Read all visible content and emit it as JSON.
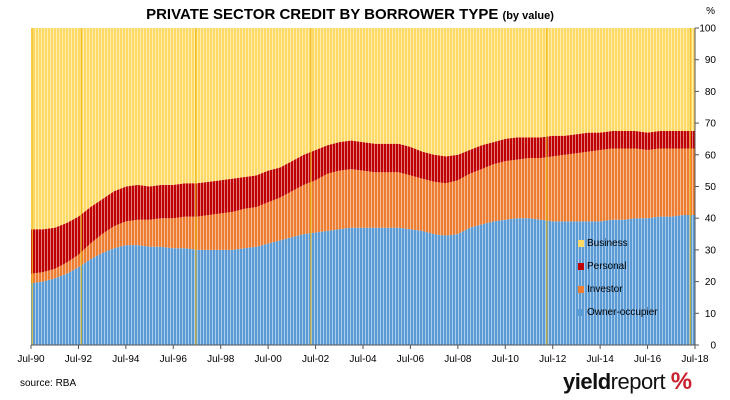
{
  "chart_data": {
    "type": "area",
    "stacked": true,
    "title": "PRIVATE SECTOR CREDIT BY BORROWER TYPE",
    "subtitle": "(by value)",
    "unit_label": "%",
    "ylim": [
      0,
      100
    ],
    "y_ticks": [
      0,
      10,
      20,
      30,
      40,
      50,
      60,
      70,
      80,
      90,
      100
    ],
    "x_tick_labels": [
      "Jul-90",
      "Jul-92",
      "Jul-94",
      "Jul-96",
      "Jul-98",
      "Jul-00",
      "Jul-02",
      "Jul-04",
      "Jul-06",
      "Jul-08",
      "Jul-10",
      "Jul-12",
      "Jul-14",
      "Jul-16",
      "Jul-18"
    ],
    "x": [
      1990.5,
      1991,
      1991.5,
      1992,
      1992.5,
      1993,
      1993.5,
      1994,
      1994.5,
      1995,
      1995.5,
      1996,
      1996.5,
      1997,
      1997.5,
      1998,
      1998.5,
      1999,
      1999.5,
      2000,
      2000.5,
      2001,
      2001.5,
      2002,
      2002.5,
      2003,
      2003.5,
      2004,
      2004.5,
      2005,
      2005.5,
      2006,
      2006.5,
      2007,
      2007.5,
      2008,
      2008.5,
      2009,
      2009.5,
      2010,
      2010.5,
      2011,
      2011.5,
      2012,
      2012.5,
      2013,
      2013.5,
      2014,
      2014.5,
      2015,
      2015.5,
      2016,
      2016.5,
      2017,
      2017.5,
      2018,
      2018.5
    ],
    "series": [
      {
        "name": "Owner-occupier",
        "color": "#5b9bd5",
        "values": [
          19.5,
          20,
          21,
          22.5,
          24.5,
          27,
          29,
          30.5,
          31.5,
          31.5,
          31,
          31,
          30.5,
          30.5,
          30,
          30,
          30,
          30,
          30.5,
          31,
          32,
          33,
          34,
          35,
          35.5,
          36,
          36.5,
          37,
          37,
          37,
          37,
          37,
          36.5,
          36,
          35,
          34.5,
          35,
          37,
          38,
          39,
          39.5,
          40,
          40,
          39.5,
          39,
          39,
          39,
          39,
          39,
          39.5,
          39.5,
          40,
          40,
          40.5,
          40.5,
          41,
          41
        ]
      },
      {
        "name": "Investor",
        "color": "#ed7d31",
        "values": [
          3,
          3,
          3,
          3.5,
          4,
          5,
          6,
          7,
          7.5,
          8,
          8.5,
          9,
          9.5,
          10,
          10.5,
          11,
          11.5,
          12,
          12.5,
          12.5,
          13,
          13.5,
          14.5,
          15.5,
          16.5,
          18,
          18.5,
          18.5,
          18,
          17.5,
          17.5,
          17.5,
          17,
          16.5,
          16.5,
          16.5,
          17,
          17,
          17.5,
          18,
          18.5,
          18.5,
          19,
          19.5,
          20.5,
          21,
          21.5,
          22,
          22.5,
          22.5,
          22.5,
          22,
          21.5,
          21.5,
          21.5,
          21,
          21
        ]
      },
      {
        "name": "Personal",
        "color": "#c00000",
        "values": [
          14,
          13.5,
          13,
          12.5,
          12,
          11.5,
          11,
          11,
          11,
          11,
          10.5,
          10.5,
          10.5,
          10.5,
          10.5,
          10.5,
          10.5,
          10.5,
          10,
          10,
          10,
          9.5,
          9.5,
          9.5,
          9.5,
          9,
          9,
          9,
          9,
          9,
          9,
          9,
          9,
          8.5,
          8.5,
          8.5,
          8,
          7.5,
          7.5,
          7,
          7,
          7,
          6.5,
          6.5,
          6.5,
          6,
          6,
          6,
          5.5,
          5.5,
          5.5,
          5.5,
          5.5,
          5.5,
          5.5,
          5.5,
          5.5
        ]
      },
      {
        "name": "Business",
        "color": "#ffd966",
        "values": [
          63.5,
          63.5,
          63,
          61.5,
          59.5,
          56.5,
          54,
          51.5,
          50,
          49.5,
          50,
          49.5,
          49.5,
          49,
          49,
          48.5,
          48,
          47.5,
          47,
          46.5,
          45,
          44,
          42,
          40,
          38.5,
          37,
          36,
          35.5,
          36,
          36.5,
          36.5,
          36.5,
          37.5,
          39,
          40,
          40.5,
          40,
          38.5,
          37,
          36,
          35,
          34.5,
          34.5,
          34.5,
          34,
          34,
          33.5,
          33,
          33,
          32.5,
          32.5,
          32.5,
          33,
          32.5,
          32.5,
          32.5,
          32.5
        ]
      }
    ],
    "legend_position": "bottom-right",
    "grid": false
  },
  "footer": {
    "source": "source: RBA",
    "logo_part1": "yield",
    "logo_part2": "report",
    "logo_pct": "%"
  }
}
